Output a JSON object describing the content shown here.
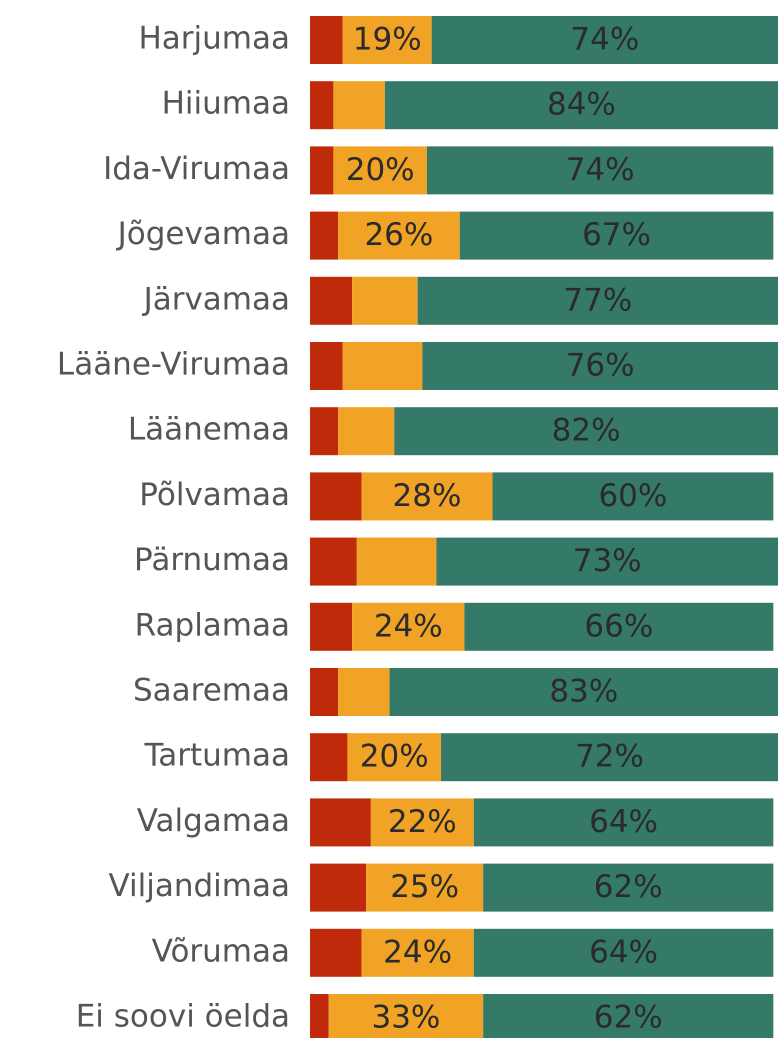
{
  "chart_data": {
    "type": "stacked-bar",
    "categories": [
      "Harjumaa",
      "Hiiumaa",
      "Ida-Virumaa",
      "Jõgevamaa",
      "Järvamaa",
      "Lääne-Virumaa",
      "Läänemaa",
      "Põlvamaa",
      "Pärnumaa",
      "Raplamaa",
      "Saaremaa",
      "Tartumaa",
      "Valgamaa",
      "Viljandimaa",
      "Võrumaa",
      "Ei soovi öelda"
    ],
    "series": [
      {
        "color": "#bf2a0b",
        "values": [
          7,
          5,
          5,
          6,
          9,
          7,
          6,
          11,
          10,
          9,
          6,
          8,
          13,
          12,
          11,
          4
        ],
        "value_labels": [
          null,
          null,
          null,
          null,
          null,
          null,
          null,
          null,
          null,
          null,
          null,
          null,
          null,
          null,
          null,
          null
        ]
      },
      {
        "color": "#f0a325",
        "values": [
          19,
          11,
          20,
          26,
          14,
          17,
          12,
          28,
          17,
          24,
          11,
          20,
          22,
          25,
          24,
          33
        ],
        "value_labels": [
          "19%",
          null,
          "20%",
          "26%",
          null,
          null,
          null,
          "28%",
          null,
          "24%",
          null,
          "20%",
          "22%",
          "25%",
          "24%",
          "33%"
        ]
      },
      {
        "color": "#357a69",
        "values": [
          74,
          84,
          74,
          67,
          77,
          76,
          82,
          60,
          73,
          66,
          83,
          72,
          64,
          62,
          64,
          62
        ],
        "value_labels": [
          "74%",
          "84%",
          "74%",
          "67%",
          "77%",
          "76%",
          "82%",
          "60%",
          "73%",
          "66%",
          "83%",
          "72%",
          "64%",
          "62%",
          "64%",
          "62%"
        ]
      }
    ],
    "xlim": [
      0,
      100
    ]
  }
}
